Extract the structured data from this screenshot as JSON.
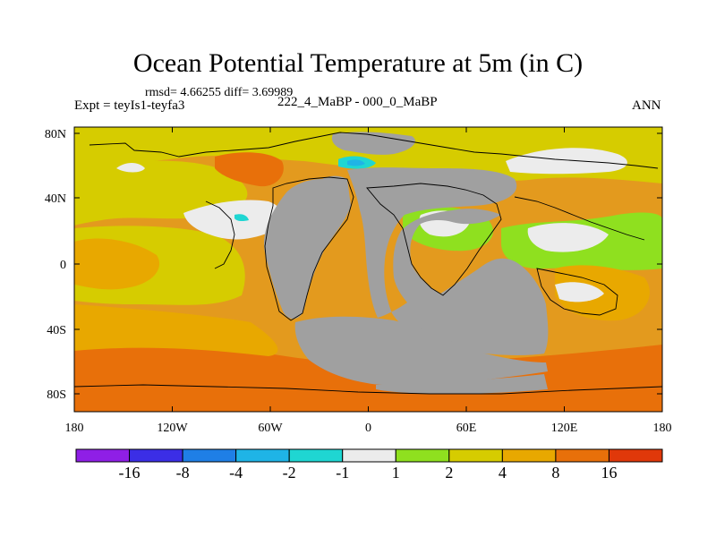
{
  "header": {
    "title": "Ocean Potential Temperature at 5m (in C)",
    "stats": "rmsd= 4.66255 diff= 3.69989",
    "expt": "Expt = teyIs1-teyfa3",
    "period": "222_4_MaBP - 000_0_MaBP",
    "season": "ANN"
  },
  "axes": {
    "lat_labels": [
      "80N",
      "40N",
      "0",
      "40S",
      "80S"
    ],
    "lon_labels": [
      "180",
      "120W",
      "60W",
      "0",
      "60E",
      "120E",
      "180"
    ]
  },
  "colorbar": {
    "colors": [
      "#8f1fe6",
      "#3b2ee6",
      "#1f7fe6",
      "#1fb4e6",
      "#1fd6d2",
      "#ececec",
      "#8fe01f",
      "#d6cc00",
      "#e8a800",
      "#e8700a",
      "#e0380a"
    ],
    "labels": [
      "-16",
      "-8",
      "-4",
      "-2",
      "-1",
      "1",
      "2",
      "4",
      "8",
      "16"
    ]
  },
  "colors": {
    "land": "#a0a0a0",
    "ocean_base": "#e39a1e"
  }
}
